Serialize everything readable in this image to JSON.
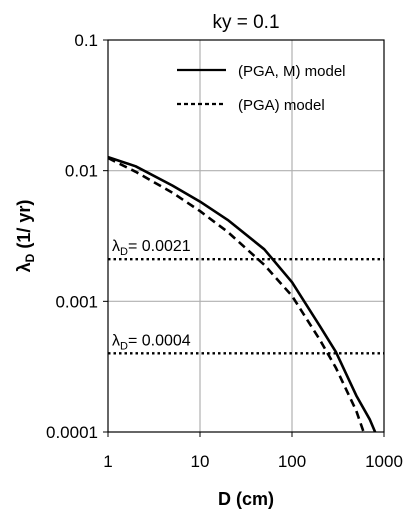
{
  "chart_data": {
    "type": "line",
    "title": "ky = 0.1",
    "xlabel": "D (cm)",
    "ylabel": "λD (1/ yr)",
    "x_scale": "log",
    "y_scale": "log",
    "xlim": [
      1,
      1000
    ],
    "ylim": [
      0.0001,
      0.1
    ],
    "x_ticks": [
      1,
      10,
      100,
      1000
    ],
    "x_tick_labels": [
      "1",
      "10",
      "100",
      "1000"
    ],
    "y_ticks": [
      0.0001,
      0.001,
      0.01,
      0.1
    ],
    "y_tick_labels": [
      "0.0001",
      "0.001",
      "0.01",
      "0.1"
    ],
    "grid": true,
    "legend_position": "top-right",
    "series": [
      {
        "name": "(PGA, M) model",
        "style": "solid",
        "color": "#000000",
        "x": [
          1,
          2,
          5,
          10,
          20,
          50,
          100,
          200,
          300,
          500,
          700,
          800
        ],
        "y": [
          0.0127,
          0.0108,
          0.0077,
          0.0058,
          0.0042,
          0.0025,
          0.0014,
          0.00065,
          0.00041,
          0.00019,
          0.000125,
          0.0001
        ]
      },
      {
        "name": "(PGA) model",
        "style": "dashed",
        "color": "#000000",
        "x": [
          1,
          2,
          5,
          10,
          20,
          50,
          100,
          200,
          300,
          500,
          600
        ],
        "y": [
          0.0125,
          0.0098,
          0.0068,
          0.0049,
          0.0034,
          0.0019,
          0.0011,
          0.00051,
          0.00031,
          0.000145,
          0.0001
        ]
      }
    ],
    "reference_lines": [
      {
        "value": 0.0021,
        "label_symbol": "λ",
        "label_sub": "D",
        "label_text": "= 0.0021",
        "style": "dotted"
      },
      {
        "value": 0.0004,
        "label_symbol": "λ",
        "label_sub": "D",
        "label_text": "= 0.0004",
        "style": "dotted"
      }
    ]
  }
}
